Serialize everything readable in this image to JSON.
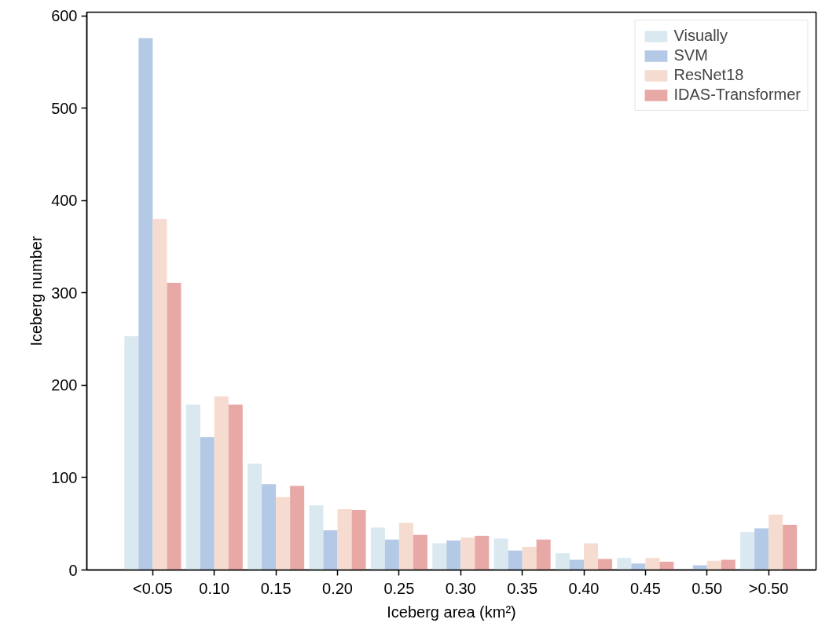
{
  "chart_data": {
    "type": "bar",
    "xlabel": "Iceberg area (km²)",
    "ylabel": "Iceberg number",
    "categories": [
      "<0.05",
      "0.10",
      "0.15",
      "0.20",
      "0.25",
      "0.30",
      "0.35",
      "0.40",
      "0.45",
      "0.50",
      ">0.50"
    ],
    "series": [
      {
        "name": "Visually",
        "color": "#dae8ef",
        "values": [
          253,
          179,
          115,
          70,
          46,
          29,
          34,
          18,
          13,
          null,
          41
        ]
      },
      {
        "name": "SVM",
        "color": "#b3c9e5",
        "values": [
          576,
          144,
          93,
          43,
          33,
          32,
          21,
          11,
          7,
          5,
          45
        ]
      },
      {
        "name": "ResNet18",
        "color": "#f6dcd0",
        "values": [
          380,
          188,
          79,
          66,
          51,
          35,
          25,
          29,
          13,
          10,
          60
        ]
      },
      {
        "name": "IDAS-Transformer",
        "color": "#e8a8a6",
        "values": [
          311,
          179,
          91,
          65,
          38,
          37,
          33,
          12,
          9,
          11,
          49
        ]
      }
    ],
    "ylim": [
      0,
      604
    ],
    "yticks": [
      0,
      100,
      200,
      300,
      400,
      500,
      600
    ],
    "grid": false,
    "legend": "top right"
  }
}
